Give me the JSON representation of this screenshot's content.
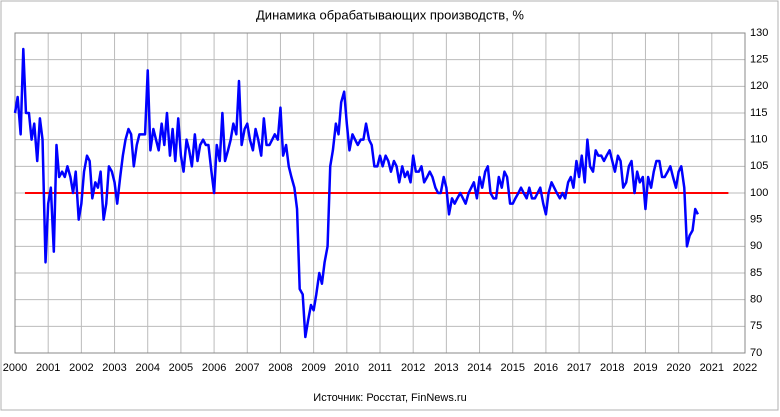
{
  "chart_data": {
    "type": "line",
    "title": "Динамика обрабатывающих производств, %",
    "source": "Источник: Росстат, FinNews.ru",
    "xlim": [
      2000,
      2022
    ],
    "xticks": [
      2000,
      2001,
      2002,
      2003,
      2004,
      2005,
      2006,
      2007,
      2008,
      2009,
      2010,
      2011,
      2012,
      2013,
      2014,
      2015,
      2016,
      2017,
      2018,
      2019,
      2020,
      2021,
      2022
    ],
    "ylim": [
      70,
      130
    ],
    "yticks": [
      70,
      75,
      80,
      85,
      90,
      95,
      100,
      105,
      110,
      115,
      120,
      125,
      130
    ],
    "grid": true,
    "hline": {
      "y": 100,
      "x": [
        2000.3,
        2021.5
      ],
      "color": "#ff0000"
    },
    "x": [
      2000,
      2000.08,
      2000.17,
      2000.25,
      2000.33,
      2000.42,
      2000.5,
      2000.58,
      2000.67,
      2000.75,
      2000.83,
      2000.92,
      2001,
      2001.08,
      2001.17,
      2001.25,
      2001.33,
      2001.42,
      2001.5,
      2001.58,
      2001.67,
      2001.75,
      2001.83,
      2001.92,
      2002,
      2002.08,
      2002.17,
      2002.25,
      2002.33,
      2002.42,
      2002.5,
      2002.58,
      2002.67,
      2002.75,
      2002.83,
      2002.92,
      2003,
      2003.08,
      2003.17,
      2003.25,
      2003.33,
      2003.42,
      2003.5,
      2003.58,
      2003.67,
      2003.75,
      2003.83,
      2003.92,
      2004,
      2004.08,
      2004.17,
      2004.25,
      2004.33,
      2004.42,
      2004.5,
      2004.58,
      2004.67,
      2004.75,
      2004.83,
      2004.92,
      2005,
      2005.08,
      2005.17,
      2005.25,
      2005.33,
      2005.42,
      2005.5,
      2005.58,
      2005.67,
      2005.75,
      2005.83,
      2005.92,
      2006,
      2006.08,
      2006.17,
      2006.25,
      2006.33,
      2006.42,
      2006.5,
      2006.58,
      2006.67,
      2006.75,
      2006.83,
      2006.92,
      2007,
      2007.08,
      2007.17,
      2007.25,
      2007.33,
      2007.42,
      2007.5,
      2007.58,
      2007.67,
      2007.75,
      2007.83,
      2007.92,
      2008,
      2008.08,
      2008.17,
      2008.25,
      2008.33,
      2008.42,
      2008.5,
      2008.58,
      2008.67,
      2008.75,
      2008.83,
      2008.92,
      2009,
      2009.08,
      2009.17,
      2009.25,
      2009.33,
      2009.42,
      2009.5,
      2009.58,
      2009.67,
      2009.75,
      2009.83,
      2009.92,
      2010,
      2010.08,
      2010.17,
      2010.25,
      2010.33,
      2010.42,
      2010.5,
      2010.58,
      2010.67,
      2010.75,
      2010.83,
      2010.92,
      2011,
      2011.08,
      2011.17,
      2011.25,
      2011.33,
      2011.42,
      2011.5,
      2011.58,
      2011.67,
      2011.75,
      2011.83,
      2011.92,
      2012,
      2012.08,
      2012.17,
      2012.25,
      2012.33,
      2012.42,
      2012.5,
      2012.58,
      2012.67,
      2012.75,
      2012.83,
      2012.92,
      2013,
      2013.08,
      2013.17,
      2013.25,
      2013.33,
      2013.42,
      2013.5,
      2013.58,
      2013.67,
      2013.75,
      2013.83,
      2013.92,
      2014,
      2014.08,
      2014.17,
      2014.25,
      2014.33,
      2014.42,
      2014.5,
      2014.58,
      2014.67,
      2014.75,
      2014.83,
      2014.92,
      2015,
      2015.08,
      2015.17,
      2015.25,
      2015.33,
      2015.42,
      2015.5,
      2015.58,
      2015.67,
      2015.75,
      2015.83,
      2015.92,
      2016,
      2016.08,
      2016.17,
      2016.25,
      2016.33,
      2016.42,
      2016.5,
      2016.58,
      2016.67,
      2016.75,
      2016.83,
      2016.92,
      2017,
      2017.08,
      2017.17,
      2017.25,
      2017.33,
      2017.42,
      2017.5,
      2017.58,
      2017.67,
      2017.75,
      2017.83,
      2017.92,
      2018,
      2018.08,
      2018.17,
      2018.25,
      2018.33,
      2018.42,
      2018.5,
      2018.58,
      2018.67,
      2018.75,
      2018.83,
      2018.92,
      2019,
      2019.08,
      2019.17,
      2019.25,
      2019.33,
      2019.42,
      2019.5,
      2019.58,
      2019.67,
      2019.75,
      2019.83,
      2019.92,
      2020,
      2020.08,
      2020.17,
      2020.25,
      2020.33,
      2020.42,
      2020.5,
      2020.58
    ],
    "series": [
      {
        "color": "#0000ff",
        "values": [
          115,
          118,
          111,
          127,
          115,
          115,
          110,
          113,
          106,
          114,
          110,
          87,
          98,
          101,
          89,
          109,
          103,
          104,
          103,
          105,
          103,
          100,
          104,
          95,
          98,
          104,
          107,
          106,
          99,
          102,
          101,
          104,
          95,
          98,
          105,
          104,
          102,
          98,
          103,
          107,
          110,
          112,
          111,
          105,
          109,
          111,
          111,
          111,
          123,
          108,
          112,
          110,
          108,
          113,
          109,
          115,
          107,
          112,
          106,
          114,
          107,
          104,
          110,
          108,
          105,
          111,
          106,
          109,
          110,
          109,
          109,
          104,
          100,
          109,
          106,
          115,
          106,
          108,
          110,
          113,
          111,
          121,
          109,
          112,
          113,
          110,
          108,
          112,
          110,
          107,
          114,
          109,
          109,
          110,
          111,
          110,
          116,
          107,
          109,
          105,
          103,
          101,
          97,
          82,
          81,
          73,
          76,
          79,
          78,
          81,
          85,
          83,
          87,
          90,
          105,
          108,
          113,
          111,
          117,
          119,
          113,
          108,
          111,
          110,
          109,
          110,
          110,
          113,
          110,
          109,
          105,
          105,
          107,
          105,
          107,
          106,
          104,
          106,
          105,
          102,
          105,
          103,
          104,
          102,
          107,
          104,
          104,
          105,
          102,
          103,
          104,
          103,
          101,
          100,
          100,
          103,
          101,
          96,
          99,
          98,
          99,
          100,
          99,
          98,
          100,
          101,
          102,
          99,
          103,
          101,
          104,
          105,
          100,
          99,
          99,
          103,
          101,
          104,
          103,
          98,
          98,
          99,
          100,
          101,
          100,
          99,
          101,
          99,
          99,
          100,
          101,
          98,
          96,
          100,
          102,
          101,
          100,
          99,
          100,
          99,
          102,
          103,
          101,
          106,
          103,
          107,
          102,
          110,
          105,
          104,
          108,
          107,
          107,
          106,
          107,
          108,
          106,
          104,
          107,
          106,
          101,
          102,
          105,
          106,
          100,
          104,
          102,
          103,
          97,
          103,
          101,
          104,
          106,
          106,
          103,
          103,
          104,
          105,
          103,
          101,
          104,
          105,
          101,
          90,
          92,
          93,
          97,
          96
        ]
      }
    ]
  }
}
